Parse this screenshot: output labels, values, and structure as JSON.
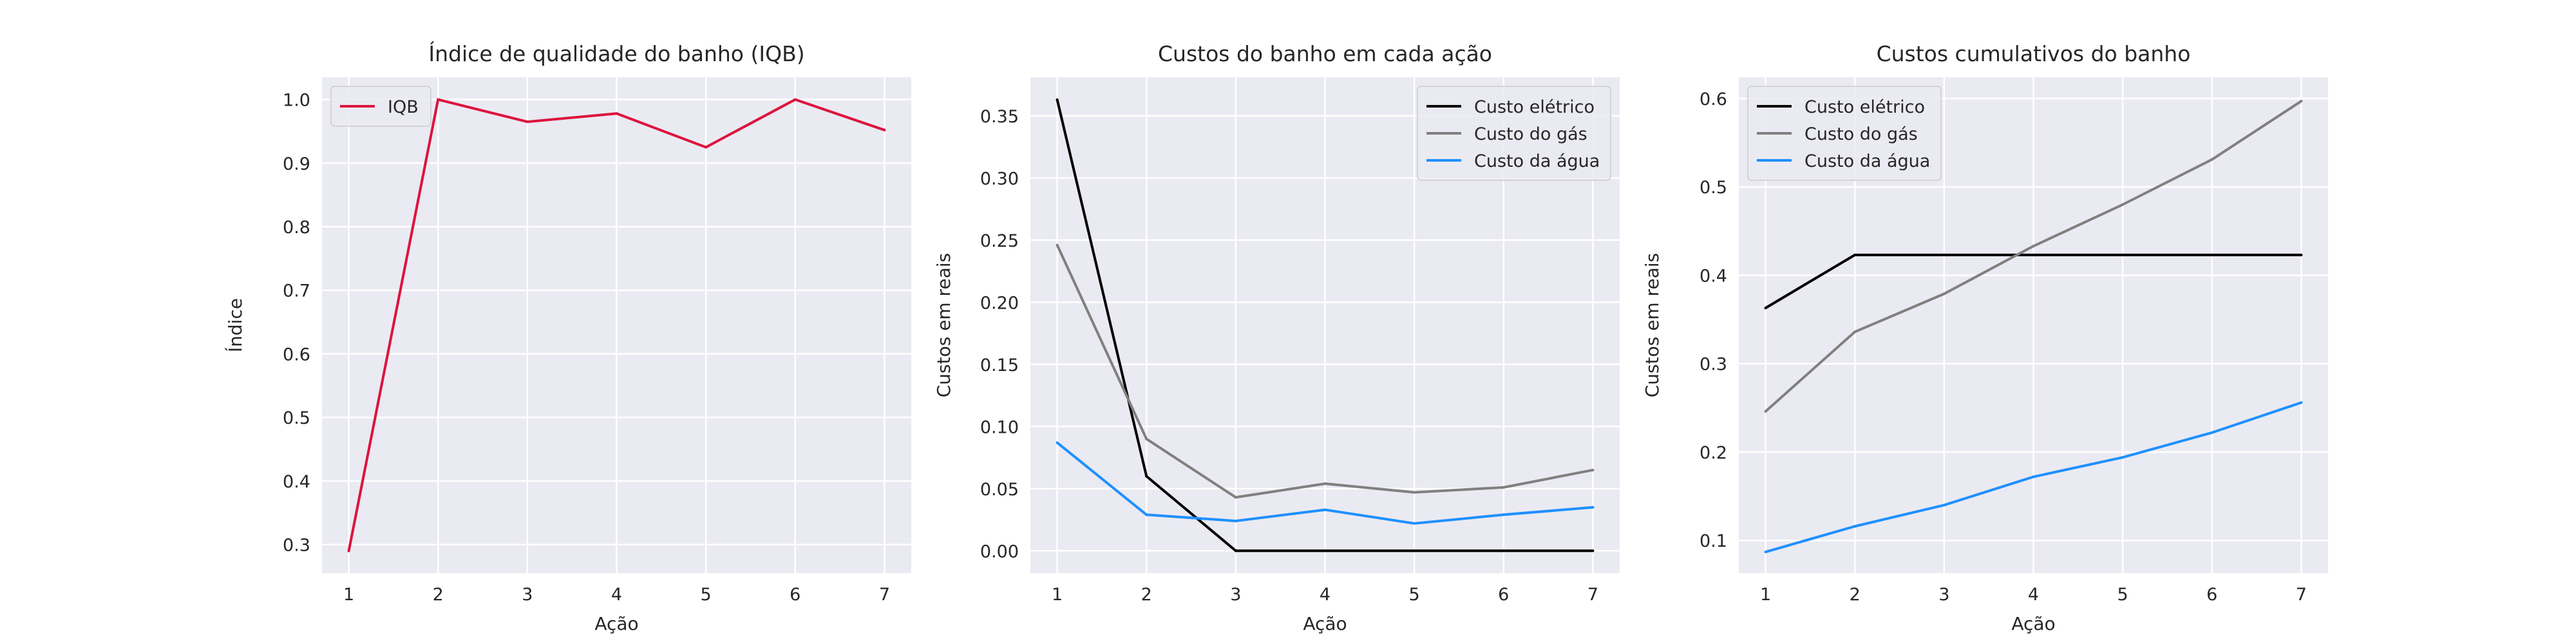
{
  "chart_data": [
    {
      "type": "line",
      "title": "Índice de qualidade do banho (IQB)",
      "xlabel": "Ação",
      "ylabel": "Índice",
      "x": [
        1,
        2,
        3,
        4,
        5,
        6,
        7
      ],
      "xticks": [
        "1",
        "2",
        "3",
        "4",
        "5",
        "6",
        "7"
      ],
      "yticks": [
        "0.3",
        "0.4",
        "0.5",
        "0.6",
        "0.7",
        "0.8",
        "0.9",
        "1.0"
      ],
      "ylim": [
        0.255,
        1.035
      ],
      "grid": true,
      "legend": "top-left",
      "series": [
        {
          "name": "IQB",
          "color": "#dc143c",
          "values": [
            0.29,
            1.0,
            0.965,
            0.978,
            0.925,
            1.0,
            0.952
          ]
        }
      ]
    },
    {
      "type": "line",
      "title": "Custos do banho em cada ação",
      "xlabel": "Ação",
      "ylabel": "Custos em reais",
      "x": [
        1,
        2,
        3,
        4,
        5,
        6,
        7
      ],
      "xticks": [
        "1",
        "2",
        "3",
        "4",
        "5",
        "6",
        "7"
      ],
      "yticks": [
        "0.00",
        "0.05",
        "0.10",
        "0.15",
        "0.20",
        "0.25",
        "0.30",
        "0.35"
      ],
      "ylim": [
        -0.018,
        0.381
      ],
      "grid": true,
      "legend": "top-right",
      "series": [
        {
          "name": "Custo elétrico",
          "color": "#000000",
          "values": [
            0.363,
            0.06,
            0.0,
            0.0,
            0.0,
            0.0,
            0.0
          ]
        },
        {
          "name": "Custo do gás",
          "color": "#808080",
          "values": [
            0.246,
            0.09,
            0.043,
            0.054,
            0.047,
            0.051,
            0.065
          ]
        },
        {
          "name": "Custo da água",
          "color": "#1e90ff",
          "values": [
            0.087,
            0.029,
            0.024,
            0.033,
            0.022,
            0.029,
            0.035
          ]
        }
      ]
    },
    {
      "type": "line",
      "title": "Custos cumulativos do banho",
      "xlabel": "Ação",
      "ylabel": "Custos em reais",
      "x": [
        1,
        2,
        3,
        4,
        5,
        6,
        7
      ],
      "xticks": [
        "1",
        "2",
        "3",
        "4",
        "5",
        "6",
        "7"
      ],
      "yticks": [
        "0.1",
        "0.2",
        "0.3",
        "0.4",
        "0.5",
        "0.6"
      ],
      "ylim": [
        0.063,
        0.624
      ],
      "grid": true,
      "legend": "top-left",
      "series": [
        {
          "name": "Custo elétrico",
          "color": "#000000",
          "values": [
            0.363,
            0.423,
            0.423,
            0.423,
            0.423,
            0.423,
            0.423
          ]
        },
        {
          "name": "Custo do gás",
          "color": "#808080",
          "values": [
            0.246,
            0.336,
            0.379,
            0.433,
            0.48,
            0.531,
            0.597
          ]
        },
        {
          "name": "Custo da água",
          "color": "#1e90ff",
          "values": [
            0.087,
            0.116,
            0.14,
            0.172,
            0.194,
            0.222,
            0.256
          ]
        }
      ]
    }
  ]
}
